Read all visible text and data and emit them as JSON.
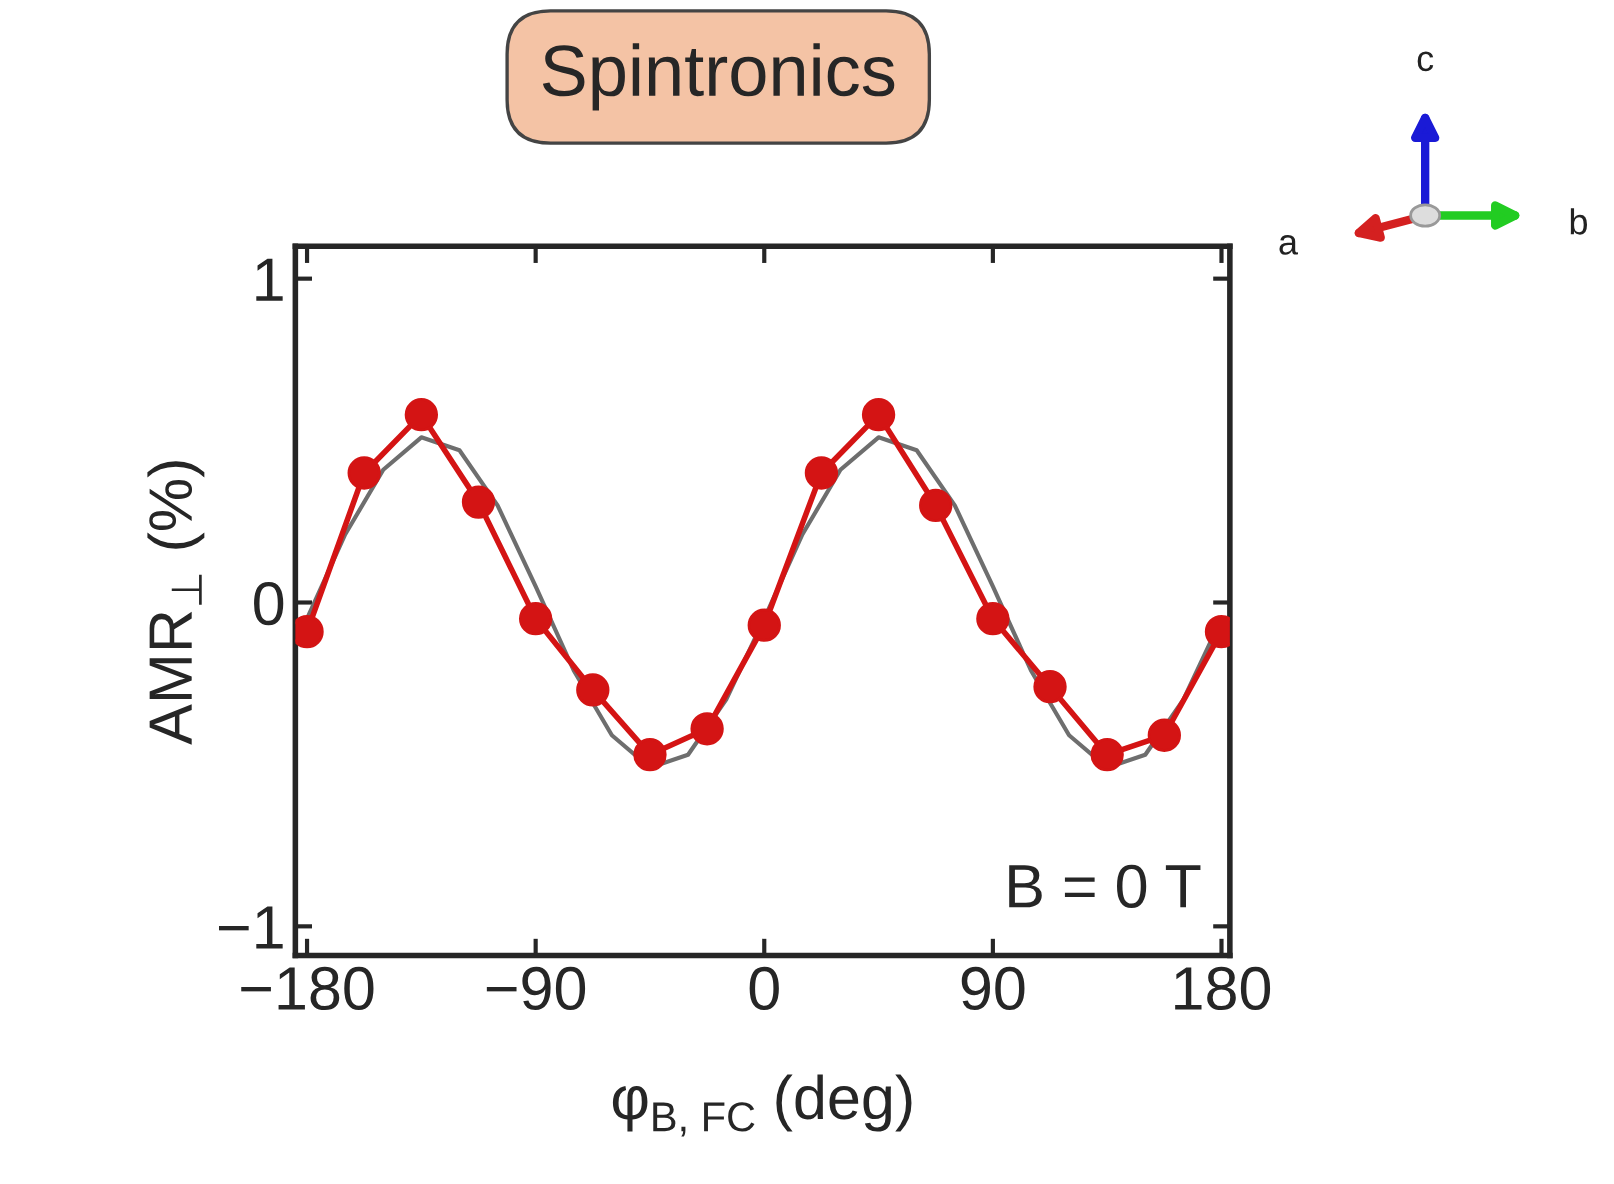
{
  "chart_data": {
    "type": "line",
    "title": "Spintronics",
    "xlabel": "φ$_{B, FC}$ (deg)",
    "ylabel": "AMR$_{⊥}$ (%)",
    "annotations": [
      "B = 0 T",
      "a",
      "b",
      "c"
    ],
    "xlim": [
      -184.6,
      183.3
    ],
    "ylim": [
      -1.09,
      1.1
    ],
    "xticks": [
      {
        "value": -180,
        "label": "−180"
      },
      {
        "value": -90,
        "label": "−90"
      },
      0,
      90,
      180
    ],
    "yticks": [
      {
        "value": -1,
        "label": "−1"
      },
      0,
      1
    ],
    "grid": false,
    "series": [
      {
        "color": "#6e6e6e",
        "marker": "none",
        "x": [
          -180,
          -165,
          -150,
          -135,
          -120,
          -105,
          -90,
          -75,
          -60,
          -45,
          -30,
          -15,
          0,
          15,
          30,
          45,
          60,
          75,
          90,
          105,
          120,
          135,
          150,
          165,
          180
        ],
        "values": [
          -0.05,
          0.21,
          0.41,
          0.51,
          0.47,
          0.3,
          0.05,
          -0.21,
          -0.41,
          -0.51,
          -0.47,
          -0.3,
          -0.05,
          0.21,
          0.41,
          0.51,
          0.47,
          0.3,
          0.05,
          -0.21,
          -0.41,
          -0.51,
          -0.47,
          -0.3,
          -0.05
        ]
      },
      {
        "color": "#d41414",
        "marker": "circle",
        "x": [
          -180,
          -157.5,
          -135,
          -112.5,
          -90,
          -67.5,
          -45,
          -22.5,
          0,
          22.5,
          45,
          67.5,
          90,
          112.5,
          135,
          157.5,
          180
        ],
        "values": [
          -0.09,
          0.4,
          0.58,
          0.31,
          -0.05,
          -0.27,
          -0.47,
          -0.39,
          -0.07,
          0.4,
          0.58,
          0.3,
          -0.05,
          -0.26,
          -0.47,
          -0.41,
          -0.09
        ]
      }
    ]
  }
}
